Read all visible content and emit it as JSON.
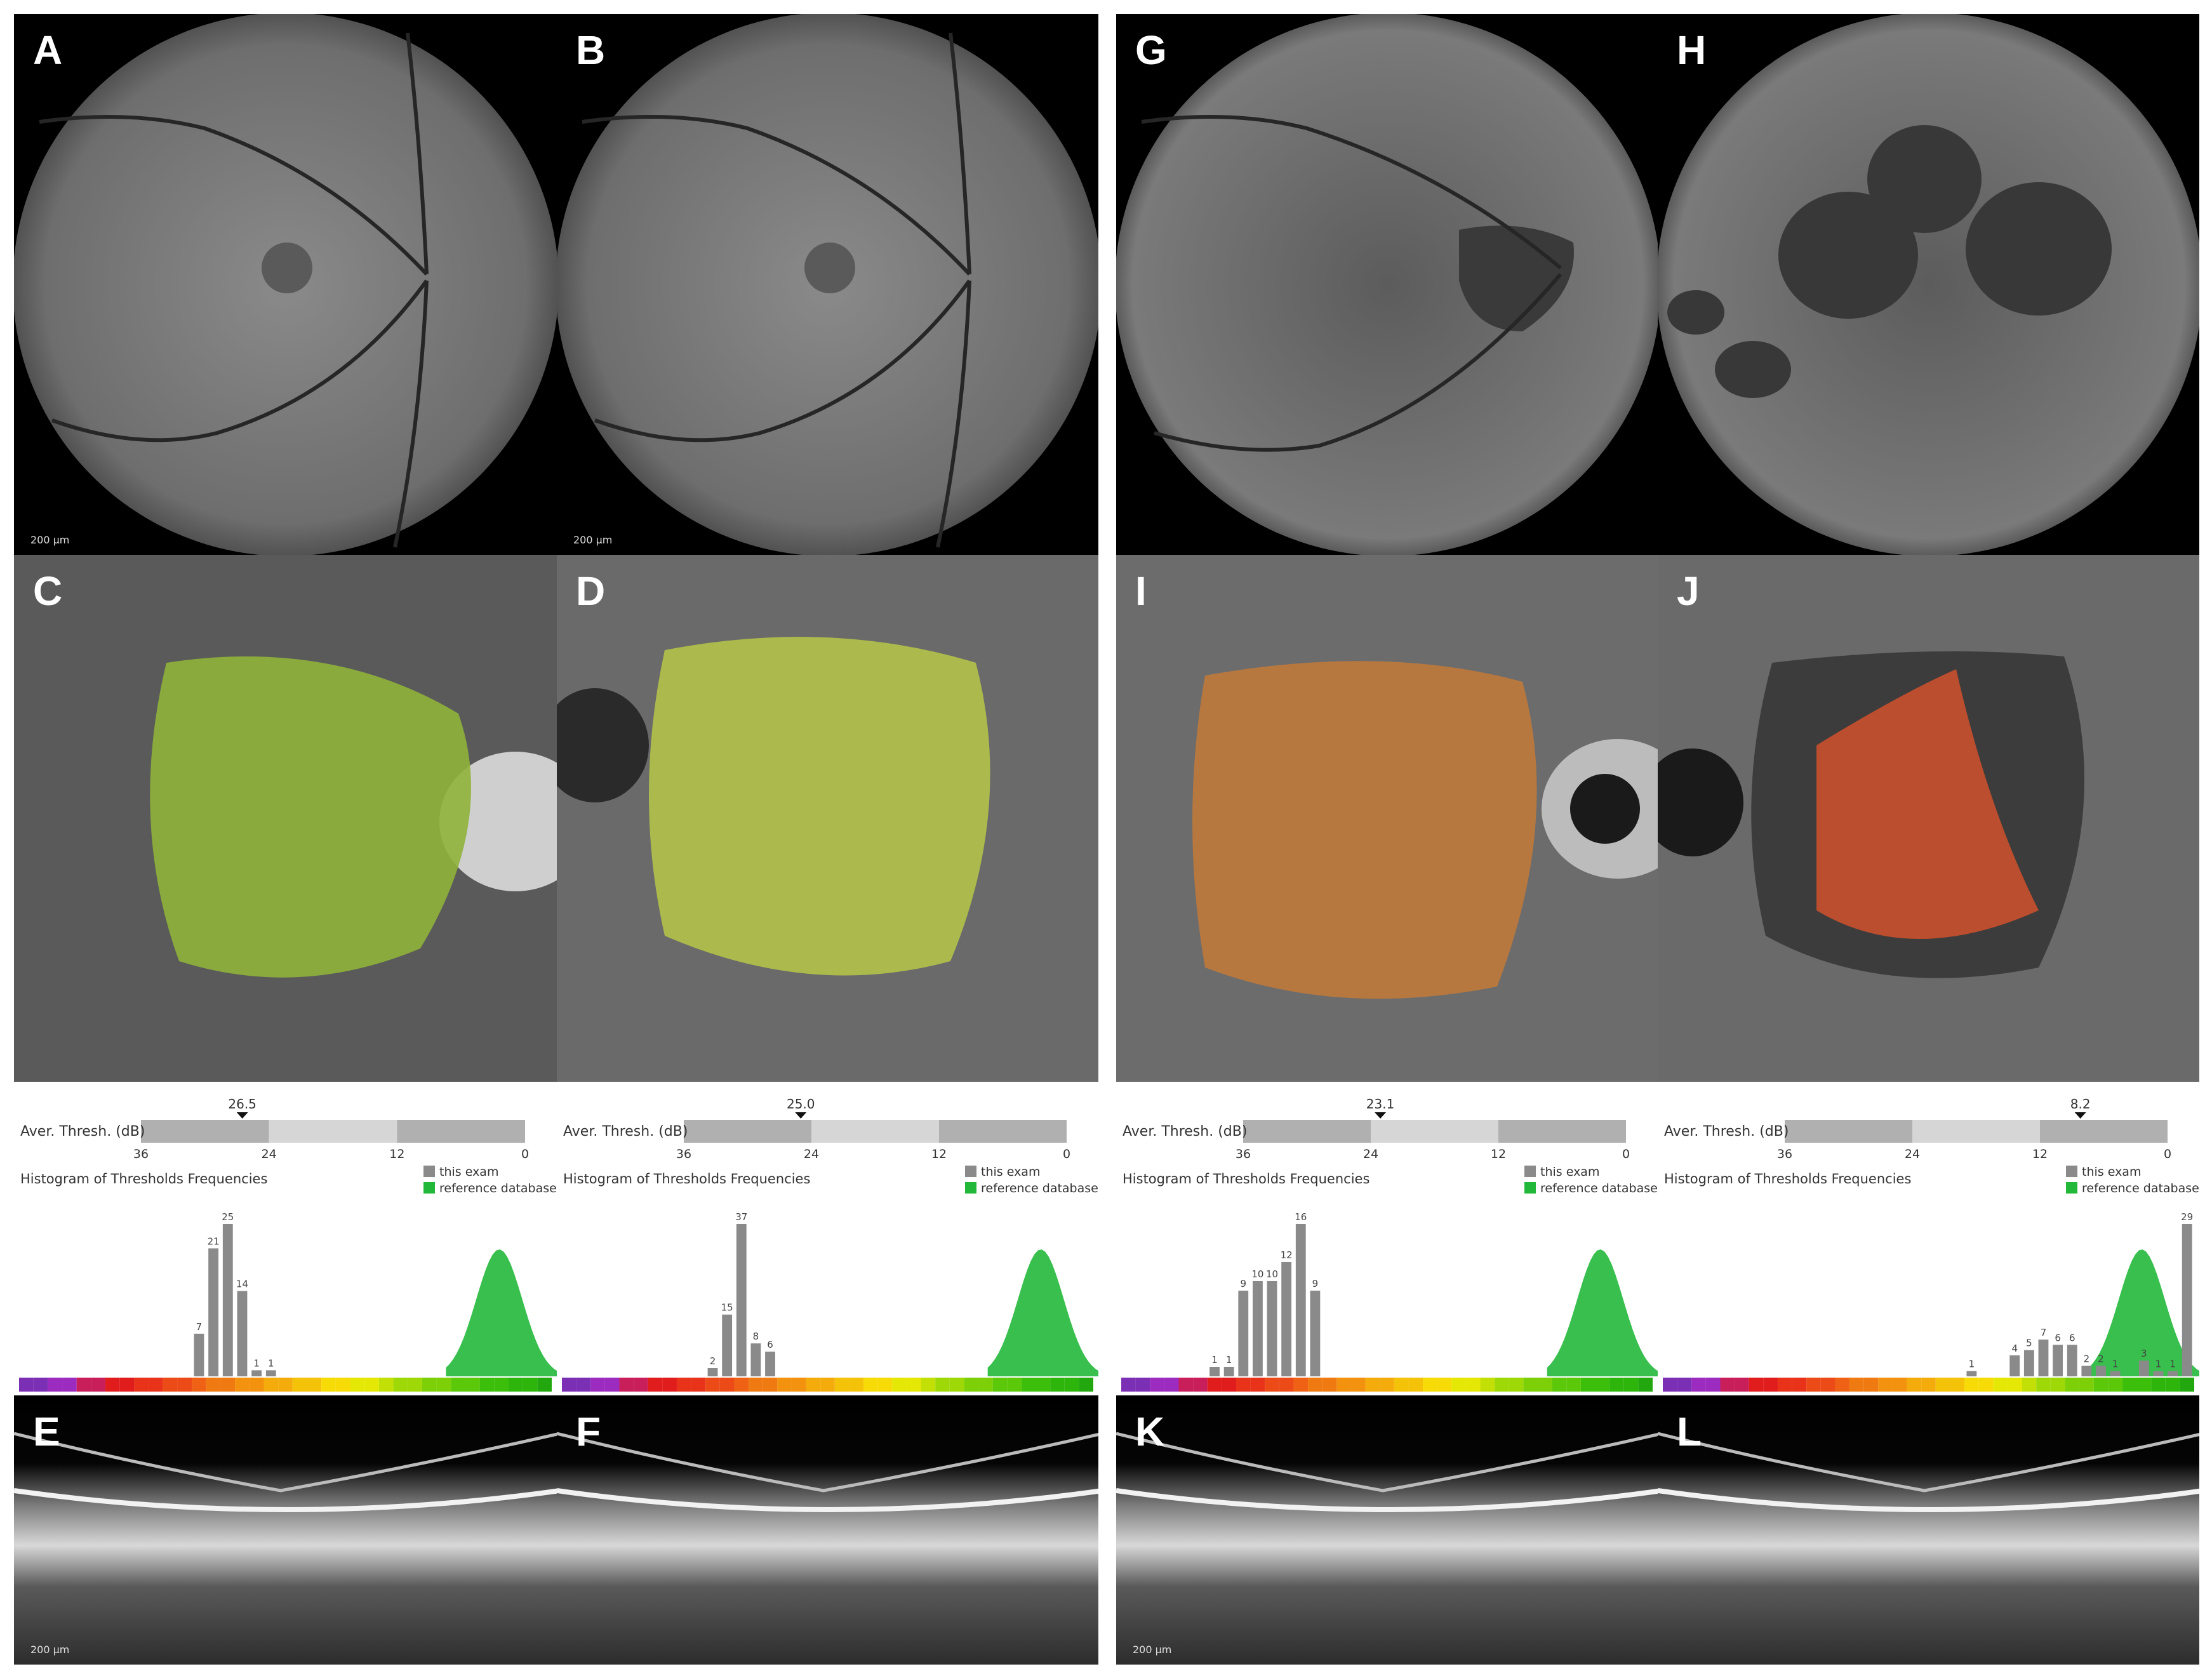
{
  "fundus_panels": [
    {
      "letter": "A",
      "kind": "fundus",
      "scale": "200 µm"
    },
    {
      "letter": "B",
      "kind": "fundus",
      "scale": "200 µm"
    },
    {
      "letter": "G",
      "kind": "fundus",
      "scale": ""
    },
    {
      "letter": "H",
      "kind": "fundus",
      "scale": ""
    }
  ],
  "microperimetry_panels": [
    {
      "letter": "C"
    },
    {
      "letter": "D"
    },
    {
      "letter": "I"
    },
    {
      "letter": "J"
    }
  ],
  "oct_panels": [
    {
      "letter": "E",
      "scale": "200 µm"
    },
    {
      "letter": "F",
      "scale": ""
    },
    {
      "letter": "K",
      "scale": "200 µm"
    },
    {
      "letter": "L",
      "scale": ""
    }
  ],
  "legend": {
    "this_exam": "this exam",
    "reference": "reference database"
  },
  "labels": {
    "aver_thresh": "Aver. Thresh. (dB)",
    "hist_title": "Histogram of Thresholds Frequencies"
  },
  "colors": {
    "this_exam": "#8a8a8a",
    "reference": "#22b83a"
  },
  "chart_data": [
    {
      "type": "bar",
      "panel": "C",
      "average_threshold": 26.5,
      "scale_ticks": [
        "36",
        "24",
        "12",
        "0"
      ],
      "bars": [
        {
          "x": 24,
          "value": 7
        },
        {
          "x": 23,
          "value": 21
        },
        {
          "x": 22,
          "value": 25
        },
        {
          "x": 21,
          "value": 14
        },
        {
          "x": 20,
          "value": 1
        },
        {
          "x": 19,
          "value": 1
        }
      ]
    },
    {
      "type": "bar",
      "panel": "D",
      "average_threshold": 25.0,
      "scale_ticks": [
        "36",
        "24",
        "12",
        "0"
      ],
      "bars": [
        {
          "x": 26,
          "value": 2
        },
        {
          "x": 25,
          "value": 15
        },
        {
          "x": 24,
          "value": 37
        },
        {
          "x": 23,
          "value": 8
        },
        {
          "x": 22,
          "value": 6
        }
      ]
    },
    {
      "type": "bar",
      "panel": "I",
      "average_threshold": 23.1,
      "scale_ticks": [
        "36",
        "24",
        "12",
        "0"
      ],
      "bars": [
        {
          "x": 30,
          "value": 1
        },
        {
          "x": 29,
          "value": 1
        },
        {
          "x": 28,
          "value": 9
        },
        {
          "x": 27,
          "value": 10
        },
        {
          "x": 26,
          "value": 10
        },
        {
          "x": 25,
          "value": 12
        },
        {
          "x": 24,
          "value": 16
        },
        {
          "x": 23,
          "value": 9
        }
      ]
    },
    {
      "type": "bar",
      "panel": "J",
      "average_threshold": 8.2,
      "scale_ticks": [
        "36",
        "24",
        "12",
        "0"
      ],
      "bars": [
        {
          "x": 0,
          "value": 29
        },
        {
          "x": 1,
          "value": 1
        },
        {
          "x": 2,
          "value": 1
        },
        {
          "x": 3,
          "value": 3
        },
        {
          "x": 5,
          "value": 1
        },
        {
          "x": 6,
          "value": 2
        },
        {
          "x": 7,
          "value": 2
        },
        {
          "x": 8,
          "value": 6
        },
        {
          "x": 9,
          "value": 6
        },
        {
          "x": 10,
          "value": 7
        },
        {
          "x": 11,
          "value": 5
        },
        {
          "x": 12,
          "value": 4
        },
        {
          "x": 15,
          "value": 1
        }
      ]
    }
  ]
}
